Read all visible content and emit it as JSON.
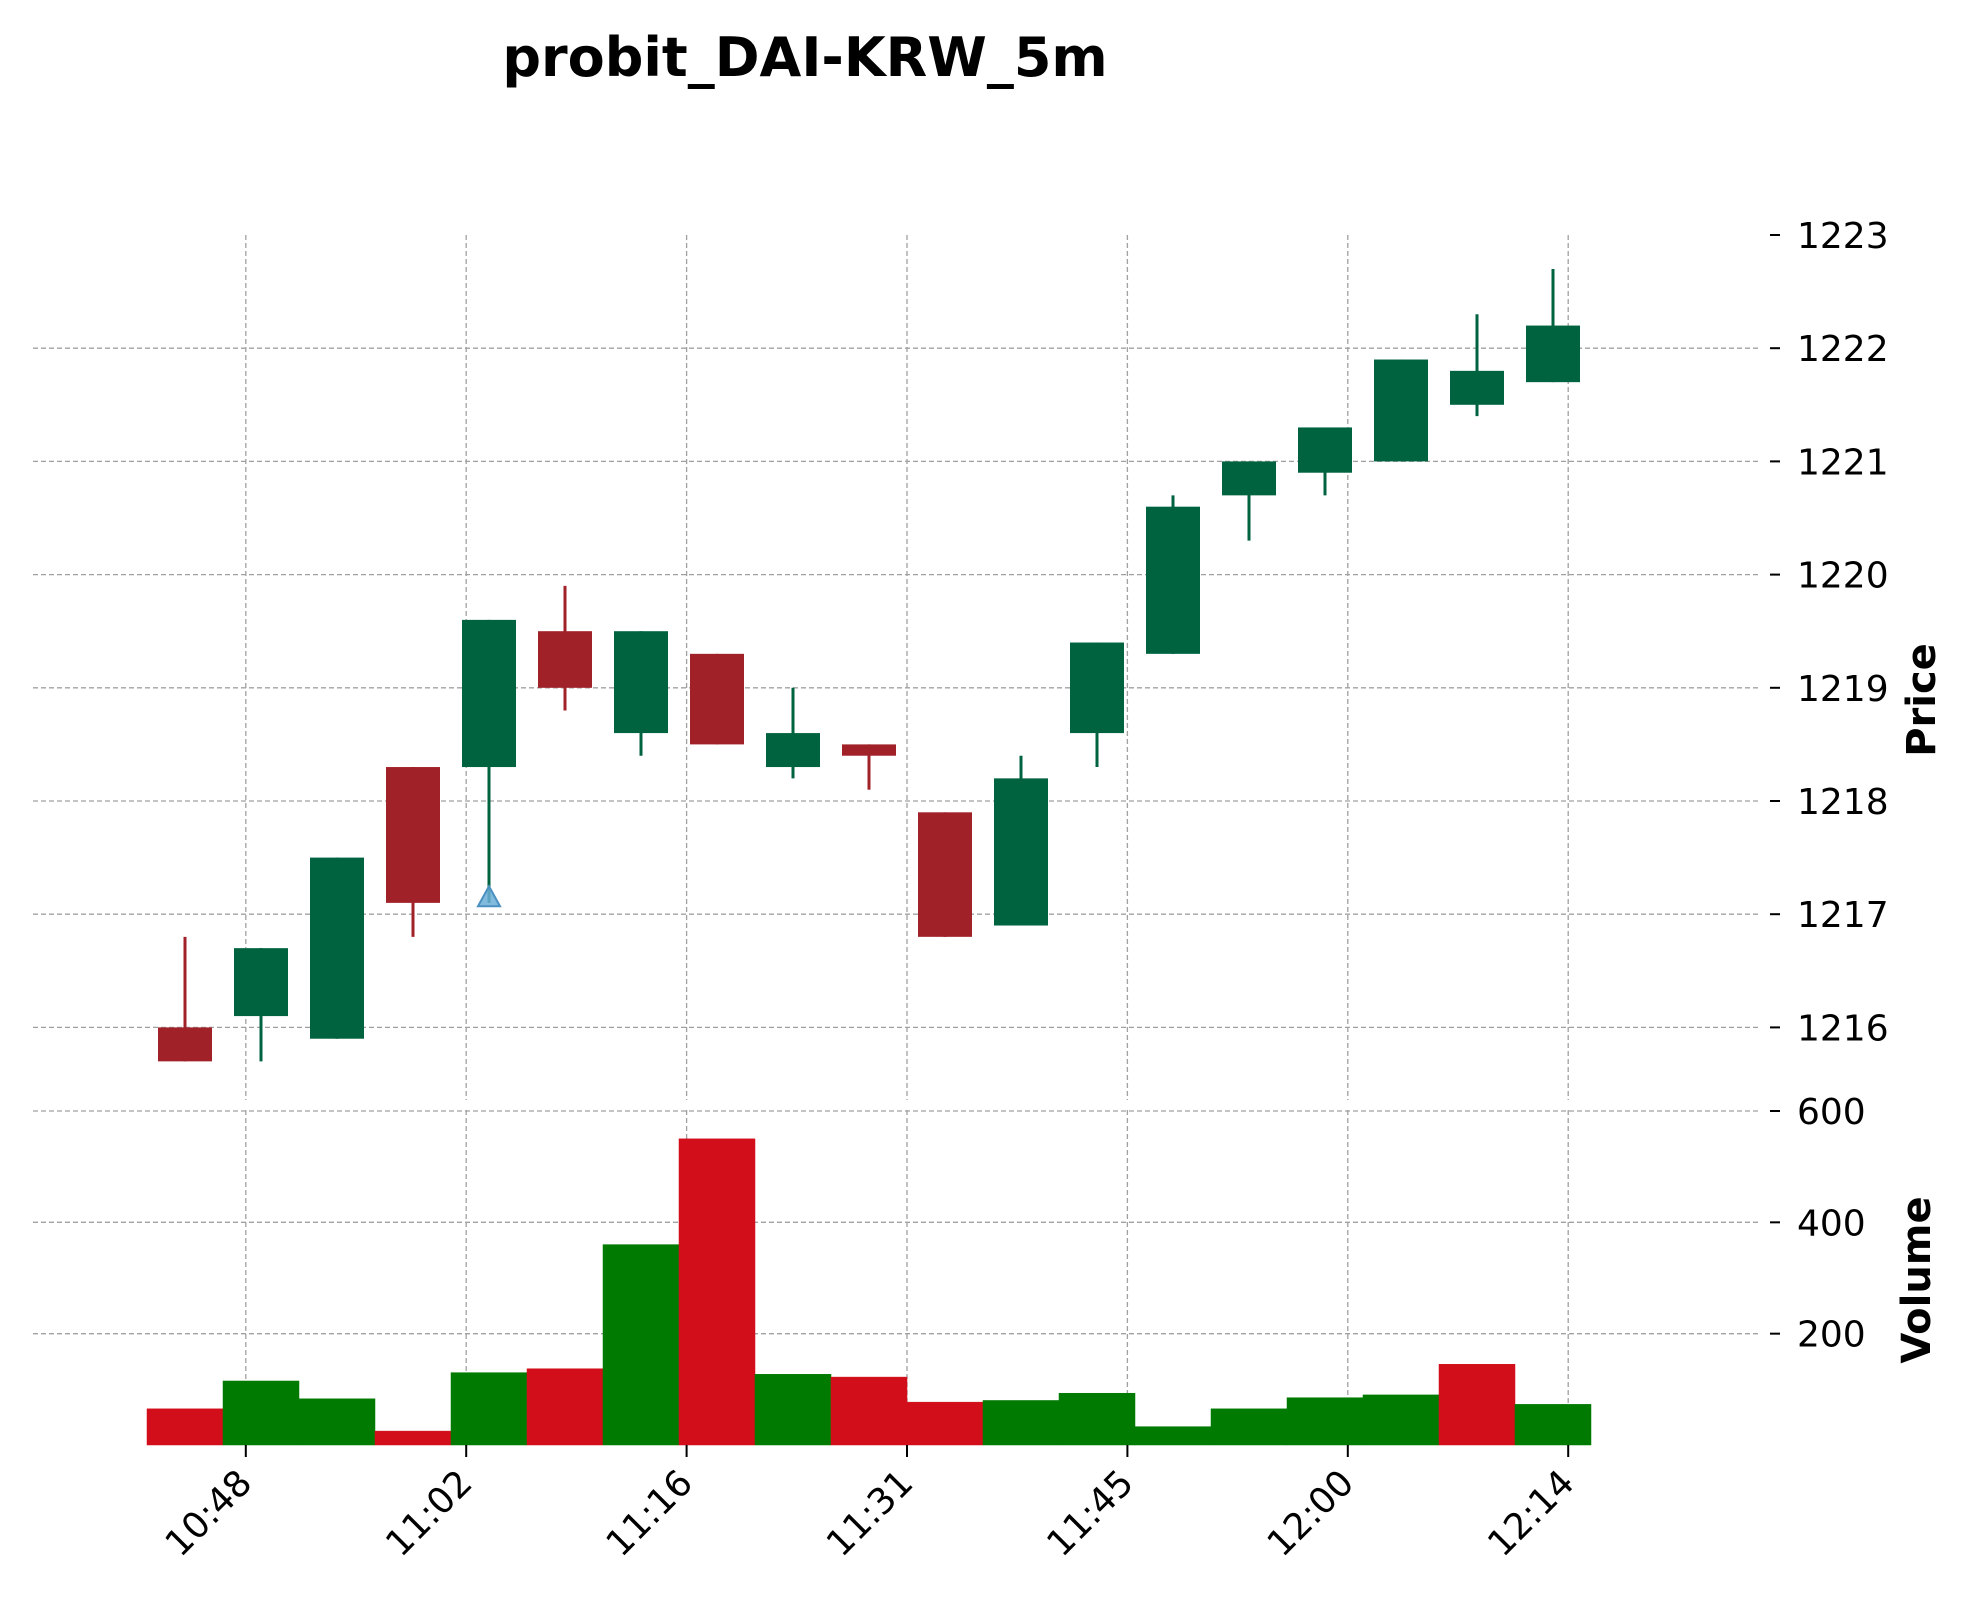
{
  "chart_data": {
    "type": "candlestick",
    "title": "probit_DAI-KRW_5m",
    "price_panel": {
      "ylabel": "Price",
      "ylim": [
        1215.5,
        1223.0
      ],
      "yticks": [
        "1216",
        "1217",
        "1218",
        "1219",
        "1220",
        "1221",
        "1222",
        "1223"
      ]
    },
    "volume_panel": {
      "ylabel": "Volume",
      "ylim": [
        0,
        600
      ],
      "yticks": [
        "200",
        "400",
        "600"
      ]
    },
    "x_ticks": [
      {
        "label": "10:48",
        "i": 0.8
      },
      {
        "label": "11:02",
        "i": 3.7
      },
      {
        "label": "11:16",
        "i": 6.6
      },
      {
        "label": "11:31",
        "i": 9.5
      },
      {
        "label": "11:45",
        "i": 12.4
      },
      {
        "label": "12:00",
        "i": 15.3
      },
      {
        "label": "12:14",
        "i": 18.2
      }
    ],
    "up_color": "#006340",
    "down_color": "#a02128",
    "vol_up_color": "#007a00",
    "vol_down_color": "#d10e1a",
    "marker_color": "#6baed6",
    "candles": [
      {
        "o": 1216.0,
        "h": 1216.8,
        "l": 1215.7,
        "c": 1215.7,
        "v": 65
      },
      {
        "o": 1216.1,
        "h": 1216.7,
        "l": 1215.7,
        "c": 1216.7,
        "v": 115
      },
      {
        "o": 1215.9,
        "h": 1217.5,
        "l": 1215.9,
        "c": 1217.5,
        "v": 83
      },
      {
        "o": 1218.3,
        "h": 1218.3,
        "l": 1216.8,
        "c": 1217.1,
        "v": 25
      },
      {
        "o": 1218.3,
        "h": 1219.6,
        "l": 1217.1,
        "c": 1219.6,
        "v": 130,
        "marker": 1217.15
      },
      {
        "o": 1219.5,
        "h": 1219.9,
        "l": 1218.8,
        "c": 1219.0,
        "v": 137
      },
      {
        "o": 1218.6,
        "h": 1219.5,
        "l": 1218.4,
        "c": 1219.5,
        "v": 360
      },
      {
        "o": 1219.3,
        "h": 1219.3,
        "l": 1218.5,
        "c": 1218.5,
        "v": 550
      },
      {
        "o": 1218.3,
        "h": 1219.0,
        "l": 1218.2,
        "c": 1218.6,
        "v": 127
      },
      {
        "o": 1218.5,
        "h": 1218.5,
        "l": 1218.1,
        "c": 1218.4,
        "v": 122
      },
      {
        "o": 1217.9,
        "h": 1217.9,
        "l": 1216.8,
        "c": 1216.8,
        "v": 77
      },
      {
        "o": 1216.9,
        "h": 1218.4,
        "l": 1216.9,
        "c": 1218.2,
        "v": 80
      },
      {
        "o": 1218.6,
        "h": 1219.4,
        "l": 1218.3,
        "c": 1219.4,
        "v": 93
      },
      {
        "o": 1219.3,
        "h": 1220.7,
        "l": 1219.3,
        "c": 1220.6,
        "v": 33
      },
      {
        "o": 1220.7,
        "h": 1221.0,
        "l": 1220.3,
        "c": 1221.0,
        "v": 65
      },
      {
        "o": 1220.9,
        "h": 1221.3,
        "l": 1220.7,
        "c": 1221.3,
        "v": 85
      },
      {
        "o": 1221.0,
        "h": 1221.9,
        "l": 1221.0,
        "c": 1221.9,
        "v": 90
      },
      {
        "o": 1221.5,
        "h": 1222.3,
        "l": 1221.4,
        "c": 1221.8,
        "v": 145,
        "vol_color": "down"
      },
      {
        "o": 1221.7,
        "h": 1222.7,
        "l": 1221.7,
        "c": 1222.2,
        "v": 73
      }
    ]
  }
}
